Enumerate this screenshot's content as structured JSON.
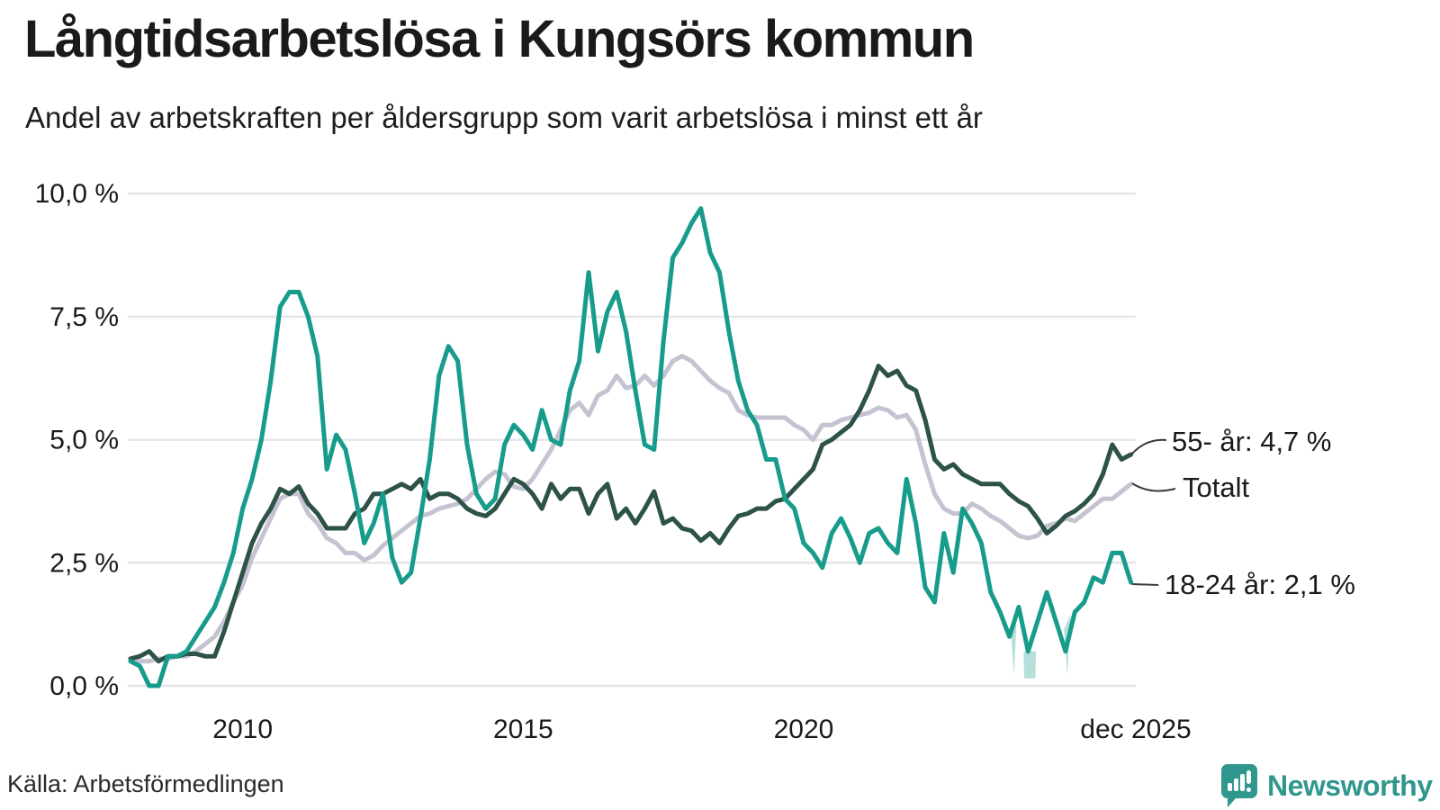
{
  "header": {
    "title": "Långtidsarbetslösa i Kungsörs kommun",
    "subtitle": "Andel av arbetskraften per åldersgrupp som varit arbetslösa i minst ett år"
  },
  "source": {
    "label": "Källa: Arbetsförmedlingen"
  },
  "branding": {
    "name": "Newsworthy",
    "icon": "newsworthy-speech-bubble-bar-chart-icon",
    "color": "#2f978d"
  },
  "chart_data": {
    "type": "line",
    "title": "Långtidsarbetslösa i Kungsörs kommun",
    "subtitle": "Andel av arbetskraften per åldersgrupp som varit arbetslösa i minst ett år",
    "unit": "%",
    "x_start": 2008.0,
    "x_step_years": 0.166667,
    "x_end_label": "dec 2025",
    "ylim": [
      0,
      10
    ],
    "grid": "horizontal",
    "legend_position": "end-of-line labels",
    "yticks": [
      {
        "value": 10.0,
        "label": "10,0 %"
      },
      {
        "value": 7.5,
        "label": "7,5 %"
      },
      {
        "value": 5.0,
        "label": "5,0 %"
      },
      {
        "value": 2.5,
        "label": "2,5 %"
      },
      {
        "value": 0.0,
        "label": "0,0 %"
      }
    ],
    "xticks": [
      {
        "t": 2010.0,
        "label": "2010"
      },
      {
        "t": 2015.0,
        "label": "2015"
      },
      {
        "t": 2020.0,
        "label": "2020"
      },
      {
        "t": 2025.92,
        "label": "dec 2025"
      }
    ],
    "series": [
      {
        "name": "Totalt",
        "color": "#c5c3d2",
        "end_label": "Totalt",
        "end_value": 4.1,
        "values": [
          0.5,
          0.5,
          0.5,
          0.55,
          0.55,
          0.6,
          0.6,
          0.7,
          0.85,
          1.0,
          1.3,
          1.7,
          2.05,
          2.6,
          3.0,
          3.4,
          3.8,
          3.9,
          3.9,
          3.5,
          3.3,
          3.0,
          2.9,
          2.7,
          2.7,
          2.55,
          2.65,
          2.85,
          3.0,
          3.15,
          3.3,
          3.45,
          3.5,
          3.6,
          3.65,
          3.7,
          3.8,
          4.0,
          4.2,
          4.35,
          4.3,
          4.05,
          4.0,
          4.2,
          4.5,
          4.8,
          5.2,
          5.6,
          5.75,
          5.5,
          5.9,
          6.0,
          6.3,
          6.05,
          6.1,
          6.3,
          6.1,
          6.3,
          6.6,
          6.7,
          6.6,
          6.4,
          6.2,
          6.05,
          5.95,
          5.6,
          5.5,
          5.45,
          5.45,
          5.45,
          5.45,
          5.3,
          5.2,
          5.0,
          5.3,
          5.3,
          5.4,
          5.45,
          5.5,
          5.55,
          5.65,
          5.6,
          5.45,
          5.5,
          5.2,
          4.5,
          3.9,
          3.6,
          3.5,
          3.5,
          3.7,
          3.6,
          3.45,
          3.35,
          3.2,
          3.05,
          3.0,
          3.05,
          3.25,
          3.3,
          3.4,
          3.35,
          3.5,
          3.65,
          3.8,
          3.8,
          3.95,
          4.1
        ]
      },
      {
        "name": "55- år",
        "color": "#2d5247",
        "end_label": "55- år: 4,7 %",
        "end_value": 4.7,
        "values": [
          0.55,
          0.6,
          0.7,
          0.5,
          0.6,
          0.6,
          0.65,
          0.65,
          0.6,
          0.6,
          1.1,
          1.7,
          2.3,
          2.9,
          3.3,
          3.6,
          4.0,
          3.9,
          4.05,
          3.7,
          3.5,
          3.2,
          3.2,
          3.2,
          3.5,
          3.6,
          3.9,
          3.9,
          4.0,
          4.1,
          4.0,
          4.2,
          3.8,
          3.9,
          3.9,
          3.8,
          3.6,
          3.5,
          3.45,
          3.6,
          3.9,
          4.2,
          4.1,
          3.9,
          3.6,
          4.1,
          3.8,
          4.0,
          4.0,
          3.5,
          3.9,
          4.1,
          3.4,
          3.6,
          3.3,
          3.6,
          3.95,
          3.3,
          3.4,
          3.2,
          3.15,
          2.95,
          3.1,
          2.9,
          3.2,
          3.45,
          3.5,
          3.6,
          3.6,
          3.75,
          3.8,
          4.0,
          4.2,
          4.4,
          4.9,
          5.0,
          5.15,
          5.3,
          5.6,
          6.0,
          6.5,
          6.3,
          6.4,
          6.1,
          6.0,
          5.4,
          4.6,
          4.4,
          4.5,
          4.3,
          4.2,
          4.1,
          4.1,
          4.1,
          3.9,
          3.75,
          3.65,
          3.4,
          3.1,
          3.25,
          3.45,
          3.55,
          3.7,
          3.9,
          4.3,
          4.9,
          4.6,
          4.7
        ]
      },
      {
        "name": "18-24 år",
        "color": "#179c8b",
        "end_label": "18-24 år: 2,1 %",
        "end_value": 2.1,
        "values": [
          0.5,
          0.4,
          0.0,
          0.0,
          0.6,
          0.6,
          0.7,
          1.0,
          1.3,
          1.6,
          2.1,
          2.7,
          3.6,
          4.2,
          5.0,
          6.2,
          7.7,
          8.0,
          8.0,
          7.5,
          6.7,
          4.4,
          5.1,
          4.8,
          3.9,
          2.9,
          3.3,
          3.9,
          2.6,
          2.1,
          2.3,
          3.4,
          4.6,
          6.3,
          6.9,
          6.6,
          4.9,
          3.9,
          3.6,
          3.8,
          4.9,
          5.3,
          5.1,
          4.8,
          5.6,
          5.0,
          4.9,
          6.0,
          6.6,
          8.4,
          6.8,
          7.6,
          8.0,
          7.2,
          6.0,
          4.9,
          4.8,
          7.0,
          8.7,
          9.0,
          9.4,
          9.7,
          8.8,
          8.4,
          7.2,
          6.2,
          5.6,
          5.3,
          4.6,
          4.6,
          3.8,
          3.6,
          2.9,
          2.7,
          2.4,
          3.1,
          3.4,
          3.0,
          2.5,
          3.1,
          3.2,
          2.9,
          2.7,
          4.2,
          3.3,
          2.0,
          1.7,
          3.1,
          2.3,
          3.6,
          3.3,
          2.9,
          1.9,
          1.5,
          1.0,
          1.6,
          0.7,
          1.3,
          1.9,
          1.3,
          0.7,
          1.5,
          1.7,
          2.2,
          2.1,
          2.7,
          2.7,
          2.1
        ]
      }
    ],
    "low_value_shading": {
      "color": "rgba(23,156,140,0.32)",
      "regions": [
        [
          [
            2023.7,
            1.0
          ],
          [
            2023.75,
            0.2
          ],
          [
            2023.8,
            1.5
          ]
        ],
        [
          [
            2023.92,
            0.7
          ],
          [
            2023.93,
            0.15
          ],
          [
            2024.13,
            0.15
          ],
          [
            2024.14,
            0.7
          ]
        ],
        [
          [
            2024.64,
            1.15
          ],
          [
            2024.7,
            0.22
          ],
          [
            2024.76,
            1.45
          ]
        ]
      ]
    }
  }
}
